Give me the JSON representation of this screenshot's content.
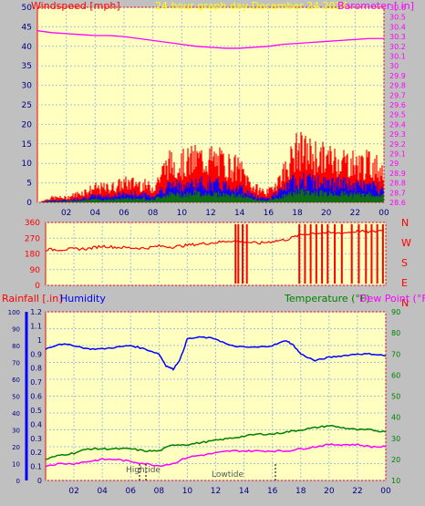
{
  "header": {
    "wind_label": "Windspeed [mph]",
    "center_label": "24 hour graph day   December 24 2024",
    "baro_label": "Barometer [ in]"
  },
  "humid_header": {
    "rain_label": "Rainfall [.in]",
    "humidity_label": "Humidity",
    "temp_label": "Temperature (°F)",
    "dew_label": "Dew Point (°F)"
  },
  "tides": {
    "high": "Hightide",
    "low": "Lowtide"
  },
  "colors": {
    "wind_avg": "#008000",
    "wind_gust": "#0000ff",
    "wind_max": "#ff0000",
    "baro": "#ff00ff",
    "direction": "#ff0000",
    "rain": "#ff0000",
    "humidity": "#0000ff",
    "temperature": "#008000",
    "dewpoint": "#ff00ff",
    "plot_bg": "#ffffc0",
    "page_bg": "#c0c0c0"
  },
  "chart_data": [
    {
      "id": "wind-baro",
      "type": "line",
      "x_ticks": [
        "02",
        "04",
        "06",
        "08",
        "10",
        "12",
        "14",
        "16",
        "18",
        "20",
        "22",
        "00"
      ],
      "y_left_ticks": [
        "0",
        "5",
        "10",
        "15",
        "20",
        "25",
        "30",
        "35",
        "40",
        "45",
        "50"
      ],
      "y_right_ticks": [
        "28.6",
        "28.7",
        "28.8",
        "28.9",
        "29",
        "29.1",
        "29.2",
        "29.3",
        "29.4",
        "29.5",
        "29.6",
        "29.7",
        "29.8",
        "29.9",
        "30",
        "30.1",
        "30.2",
        "30.3",
        "30.4",
        "30.5",
        "30.6"
      ],
      "ylim_left": [
        0,
        50
      ],
      "ylim_right": [
        28.6,
        30.6
      ],
      "xlim_hours": [
        0,
        24
      ],
      "series": [
        {
          "name": "Barometer [ in]",
          "axis": "right",
          "x": [
            0,
            1,
            2,
            3,
            4,
            5,
            6,
            7,
            8,
            9,
            10,
            11,
            12,
            13,
            14,
            15,
            16,
            17,
            18,
            19,
            20,
            21,
            22,
            23,
            24
          ],
          "values": [
            30.36,
            30.34,
            30.33,
            30.32,
            30.31,
            30.31,
            30.3,
            30.28,
            30.26,
            30.24,
            30.22,
            30.2,
            30.19,
            30.18,
            30.18,
            30.19,
            30.2,
            30.22,
            30.23,
            30.24,
            30.25,
            30.26,
            30.27,
            30.28,
            30.28
          ]
        },
        {
          "name": "Windspeed [mph]",
          "axis": "left",
          "x": [
            0,
            1,
            2,
            3,
            4,
            5,
            6,
            7,
            8,
            9,
            10,
            11,
            12,
            13,
            14,
            15,
            16,
            17,
            18,
            19,
            20,
            21,
            22,
            23,
            24
          ],
          "values": [
            0,
            1,
            1,
            2,
            3,
            3,
            4,
            4,
            3,
            8,
            8,
            9,
            9,
            8,
            7,
            3,
            2,
            6,
            11,
            10,
            9,
            9,
            8,
            8,
            7
          ]
        }
      ]
    },
    {
      "id": "direction",
      "type": "line",
      "x_ticks": [
        "02",
        "04",
        "06",
        "08",
        "10",
        "12",
        "14",
        "16",
        "18",
        "20",
        "22",
        "00"
      ],
      "y_left_ticks": [
        "0",
        "90",
        "180",
        "270",
        "360"
      ],
      "y_right_ticks": [
        "N",
        "E",
        "S",
        "W",
        "N"
      ],
      "ylim": [
        0,
        360
      ],
      "series": [
        {
          "name": "Wind direction",
          "x": [
            0,
            1,
            2,
            3,
            4,
            5,
            6,
            7,
            8,
            9,
            10,
            11,
            12,
            13,
            14,
            15,
            16,
            17,
            18,
            19,
            20,
            21,
            22,
            23,
            24
          ],
          "values": [
            205,
            205,
            208,
            210,
            225,
            218,
            215,
            212,
            225,
            220,
            230,
            238,
            245,
            255,
            250,
            240,
            252,
            262,
            290,
            300,
            300,
            300,
            310,
            305,
            320
          ]
        }
      ]
    },
    {
      "id": "humidity-temp",
      "type": "line",
      "x_ticks": [
        "02",
        "04",
        "06",
        "08",
        "10",
        "12",
        "14",
        "16",
        "18",
        "20",
        "22",
        "00"
      ],
      "y_left_ticks": [
        "0",
        "10",
        "20",
        "30",
        "40",
        "50",
        "60",
        "70",
        "80",
        "90",
        "100"
      ],
      "y_rain_ticks": [
        "0",
        "0.1",
        "0.2",
        "0.3",
        "0.4",
        "0.5",
        "0.6",
        "0.7",
        "0.8",
        "0.9",
        "1",
        "1.1",
        "1.2"
      ],
      "y_right_ticks": [
        "10",
        "20",
        "30",
        "40",
        "50",
        "60",
        "70",
        "80",
        "90"
      ],
      "ylim_left": [
        0,
        100
      ],
      "ylim_right": [
        10,
        90
      ],
      "series": [
        {
          "name": "Humidity",
          "axis": "left",
          "x": [
            0,
            1,
            2,
            3,
            4,
            5,
            6,
            7,
            8,
            8.5,
            9,
            9.5,
            10,
            11,
            12,
            13,
            14,
            15,
            16,
            17,
            17.5,
            18,
            19,
            20,
            21,
            22,
            23,
            24
          ],
          "values": [
            78,
            81,
            80,
            78,
            78,
            79,
            80,
            78,
            75,
            68,
            66,
            72,
            84,
            85,
            84,
            80,
            79,
            79,
            80,
            83,
            80,
            75,
            71,
            73,
            74,
            75,
            75,
            74
          ]
        },
        {
          "name": "Temperature (°F)",
          "axis": "right",
          "x": [
            0,
            1,
            2,
            3,
            4,
            5,
            6,
            7,
            8,
            9,
            10,
            11,
            12,
            13,
            14,
            15,
            16,
            17,
            18,
            19,
            20,
            21,
            22,
            23,
            24
          ],
          "values": [
            20,
            22,
            23,
            25,
            25,
            25,
            25,
            24,
            24,
            27,
            27,
            28,
            29,
            30,
            31,
            32,
            32,
            33,
            34,
            35,
            36,
            35,
            34,
            34,
            33
          ]
        },
        {
          "name": "Dew Point (°F)",
          "axis": "right",
          "x": [
            0,
            1,
            2,
            3,
            4,
            5,
            6,
            7,
            8,
            9,
            10,
            11,
            12,
            13,
            14,
            15,
            16,
            17,
            18,
            19,
            20,
            21,
            22,
            23,
            24
          ],
          "values": [
            17,
            18,
            18,
            19,
            20,
            20,
            19,
            18,
            17,
            18,
            21,
            22,
            23,
            24,
            24,
            24,
            24,
            24,
            25,
            26,
            27,
            27,
            27,
            26,
            26
          ]
        }
      ]
    }
  ]
}
